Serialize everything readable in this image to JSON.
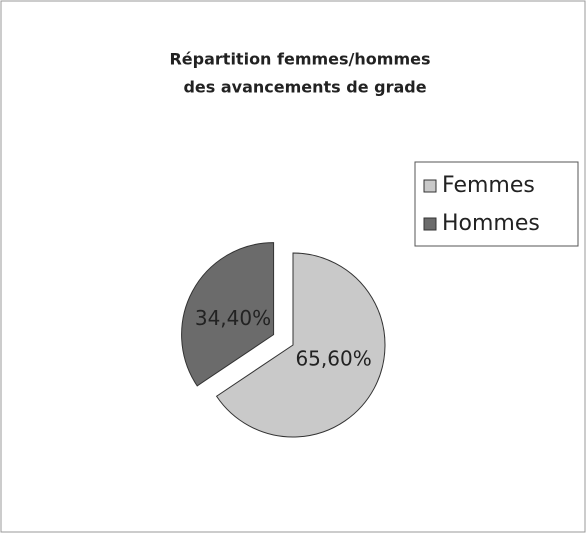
{
  "chart_data": {
    "type": "pie",
    "title": [
      "Répartition femmes/hommes",
      "des avancements de grade"
    ],
    "categories": [
      "Femmes",
      "Hommes"
    ],
    "values": [
      65.6,
      34.4
    ],
    "value_labels": [
      "65,60%",
      "34,40%"
    ],
    "colors": [
      "#c9c9c9",
      "#6b6b6b"
    ],
    "legend": "right"
  }
}
